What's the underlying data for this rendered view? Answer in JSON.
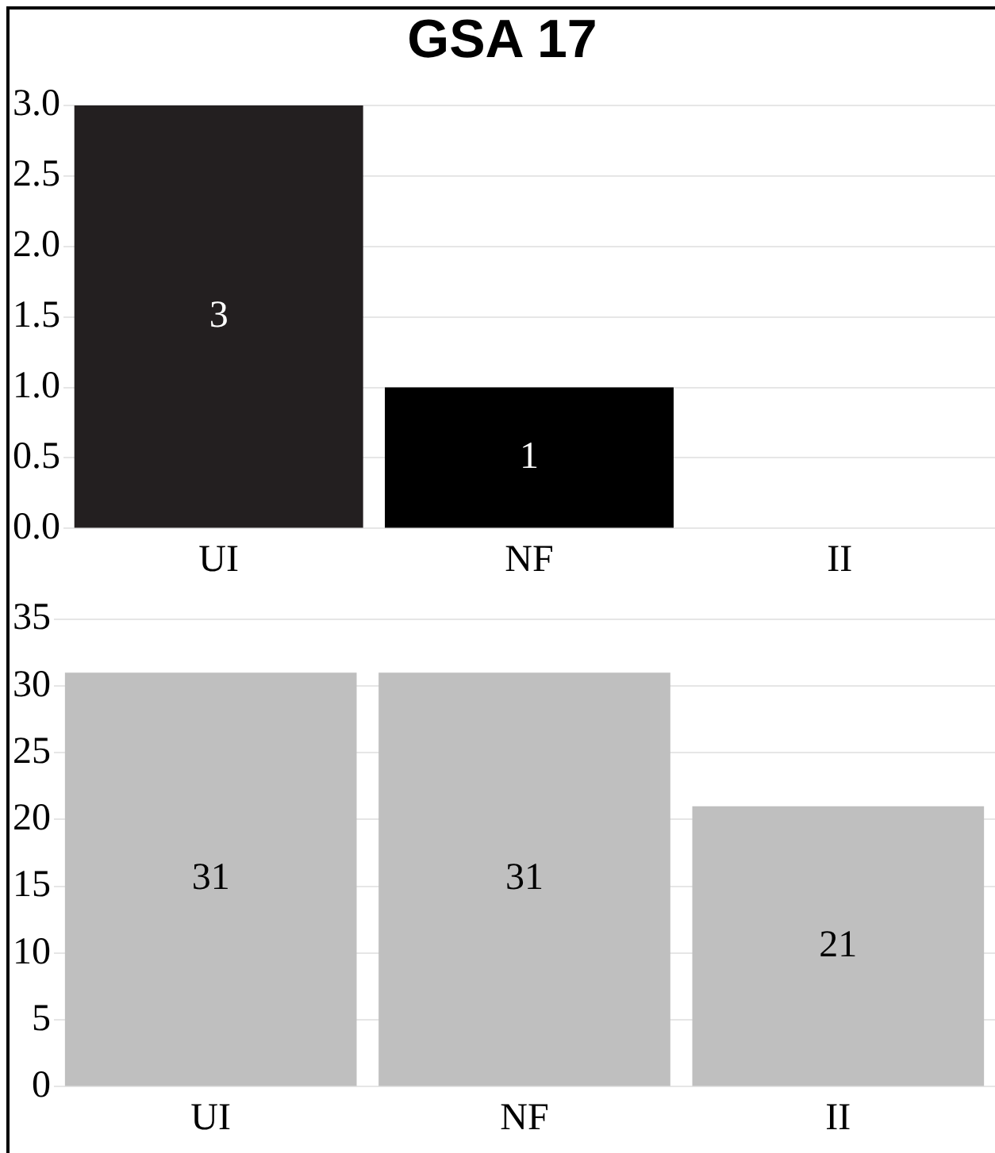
{
  "chart_data": [
    {
      "type": "bar",
      "title": "GSA 17",
      "categories": [
        "UI",
        "NF",
        "II"
      ],
      "values": [
        3,
        1,
        null
      ],
      "colors": [
        "#231f20",
        "#000000",
        "#000000"
      ],
      "ylim": [
        0,
        3
      ],
      "yticks": [
        {
          "value": 0,
          "label": "0.0"
        },
        {
          "value": 0.5,
          "label": "0.5"
        },
        {
          "value": 1,
          "label": "1.0"
        },
        {
          "value": 1.5,
          "label": "1.5"
        },
        {
          "value": 2,
          "label": "2.0"
        },
        {
          "value": 2.5,
          "label": "2.5"
        },
        {
          "value": 3,
          "label": "3.0"
        }
      ],
      "grid": "y",
      "data_labels": true
    },
    {
      "type": "bar",
      "categories": [
        "UI",
        "NF",
        "II"
      ],
      "values": [
        31,
        31,
        21
      ],
      "color": "#bfbfbf",
      "ylim": [
        0,
        35
      ],
      "yticks": [
        0,
        5,
        10,
        15,
        20,
        25,
        30,
        35
      ],
      "grid": "y",
      "data_labels": true
    }
  ]
}
